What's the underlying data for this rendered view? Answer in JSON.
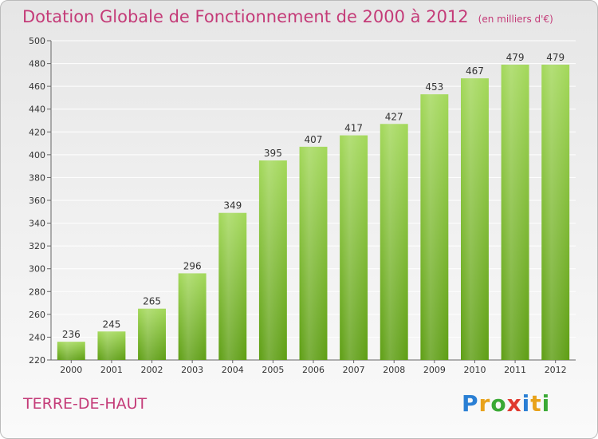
{
  "title": "Dotation Globale de Fonctionnement de 2000 à 2012",
  "subtitle": "(en milliers d'€)",
  "commune": "TERRE-DE-HAUT",
  "logo": {
    "letters": [
      "P",
      "r",
      "o",
      "x",
      "i",
      "t",
      "i"
    ],
    "colors": [
      "#2a7fd4",
      "#e8a21a",
      "#3aa935",
      "#e03a2f",
      "#2a7fd4",
      "#e8a21a",
      "#3aa935"
    ]
  },
  "colors": {
    "title": "#c43b78",
    "bar_top": "#a3d85a",
    "bar_bottom": "#5e9e14"
  },
  "chart_data": {
    "type": "bar",
    "categories": [
      "2000",
      "2001",
      "2002",
      "2003",
      "2004",
      "2005",
      "2006",
      "2007",
      "2008",
      "2009",
      "2010",
      "2011",
      "2012"
    ],
    "values": [
      236,
      245,
      265,
      296,
      349,
      395,
      407,
      417,
      427,
      453,
      467,
      479,
      479
    ],
    "ylim": [
      220,
      500
    ],
    "yticks": [
      220,
      240,
      260,
      280,
      300,
      320,
      340,
      360,
      380,
      400,
      420,
      440,
      460,
      480,
      500
    ],
    "grid": true,
    "data_labels": true
  }
}
